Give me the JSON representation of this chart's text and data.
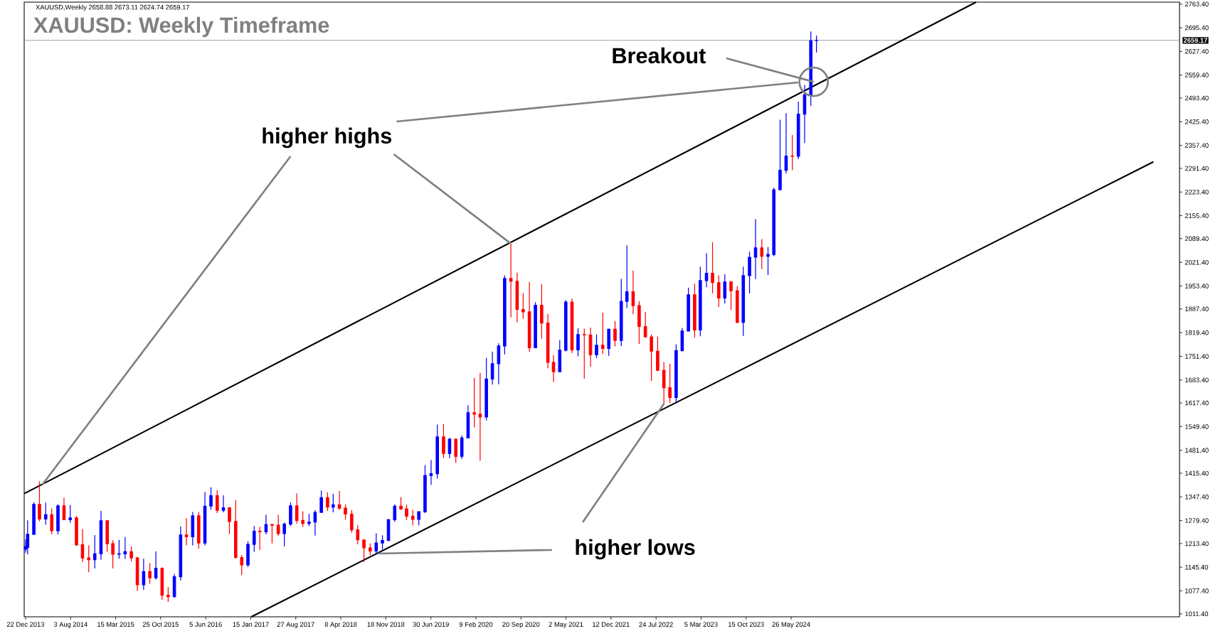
{
  "chart_data": {
    "type": "candlestick",
    "title": "XAUUSD: Weekly Timeframe",
    "annotations": [
      "XAUUSD,Weekly  2658.88 2673.11 2624.74 2659.17",
      {
        "text": "higher highs",
        "x": "2020-08-01",
        "y": 2075
      },
      {
        "text": "higher lows",
        "x": "2022-09-01",
        "y": 1615
      },
      {
        "text": "Breakout",
        "x": "2024-09-15",
        "y": 2540
      }
    ],
    "x": [
      "2013-12-22",
      "2014-01-01",
      "2014-02-01",
      "2014-03-01",
      "2014-04-01",
      "2014-05-01",
      "2014-06-01",
      "2014-07-01",
      "2014-08-01",
      "2014-09-01",
      "2014-10-01",
      "2014-11-01",
      "2014-12-01",
      "2015-01-01",
      "2015-02-01",
      "2015-03-01",
      "2015-04-01",
      "2015-05-01",
      "2015-06-01",
      "2015-07-01",
      "2015-08-01",
      "2015-09-01",
      "2015-10-01",
      "2015-11-01",
      "2015-12-01",
      "2016-01-01",
      "2016-02-01",
      "2016-03-01",
      "2016-04-01",
      "2016-05-01",
      "2016-06-01",
      "2016-07-01",
      "2016-08-01",
      "2016-09-01",
      "2016-10-01",
      "2016-11-01",
      "2016-12-01",
      "2017-01-01",
      "2017-02-01",
      "2017-03-01",
      "2017-04-01",
      "2017-05-01",
      "2017-06-01",
      "2017-07-01",
      "2017-08-01",
      "2017-09-01",
      "2017-10-01",
      "2017-11-01",
      "2017-12-01",
      "2018-01-01",
      "2018-02-01",
      "2018-03-01",
      "2018-04-01",
      "2018-05-01",
      "2018-06-01",
      "2018-07-01",
      "2018-08-01",
      "2018-09-01",
      "2018-10-01",
      "2018-11-01",
      "2018-12-01",
      "2019-01-01",
      "2019-02-01",
      "2019-03-01",
      "2019-04-01",
      "2019-05-01",
      "2019-06-01",
      "2019-07-01",
      "2019-08-01",
      "2019-09-01",
      "2019-10-01",
      "2019-11-01",
      "2019-12-01",
      "2020-01-01",
      "2020-02-01",
      "2020-03-01",
      "2020-04-01",
      "2020-05-01",
      "2020-06-01",
      "2020-07-01",
      "2020-08-01",
      "2020-09-01",
      "2020-10-01",
      "2020-11-01",
      "2020-12-01",
      "2021-01-01",
      "2021-02-01",
      "2021-03-01",
      "2021-04-01",
      "2021-05-01",
      "2021-06-01",
      "2021-07-01",
      "2021-08-01",
      "2021-09-01",
      "2021-10-01",
      "2021-11-01",
      "2021-12-01",
      "2022-01-01",
      "2022-02-01",
      "2022-03-01",
      "2022-04-01",
      "2022-05-01",
      "2022-06-01",
      "2022-07-01",
      "2022-08-01",
      "2022-09-01",
      "2022-10-01",
      "2022-11-01",
      "2022-12-01",
      "2023-01-01",
      "2023-02-01",
      "2023-03-01",
      "2023-04-01",
      "2023-05-01",
      "2023-06-01",
      "2023-07-01",
      "2023-08-01",
      "2023-09-01",
      "2023-10-01",
      "2023-11-01",
      "2023-12-01",
      "2024-01-01",
      "2024-02-01",
      "2024-03-01",
      "2024-04-01",
      "2024-05-01",
      "2024-06-01",
      "2024-07-01",
      "2024-08-01",
      "2024-09-01",
      "2024-09-29"
    ],
    "ohlc": [
      [
        1197,
        1225,
        1187,
        1205
      ],
      [
        1202,
        1280,
        1182,
        1240
      ],
      [
        1240,
        1332,
        1238,
        1326
      ],
      [
        1326,
        1392,
        1277,
        1284
      ],
      [
        1284,
        1331,
        1268,
        1296
      ],
      [
        1296,
        1315,
        1240,
        1250
      ],
      [
        1250,
        1326,
        1240,
        1322
      ],
      [
        1322,
        1345,
        1282,
        1282
      ],
      [
        1282,
        1324,
        1273,
        1287
      ],
      [
        1287,
        1293,
        1206,
        1210
      ],
      [
        1210,
        1255,
        1160,
        1172
      ],
      [
        1172,
        1208,
        1131,
        1167
      ],
      [
        1167,
        1238,
        1142,
        1184
      ],
      [
        1184,
        1307,
        1167,
        1279
      ],
      [
        1279,
        1281,
        1190,
        1213
      ],
      [
        1213,
        1223,
        1142,
        1183
      ],
      [
        1183,
        1224,
        1170,
        1184
      ],
      [
        1184,
        1232,
        1169,
        1190
      ],
      [
        1190,
        1205,
        1162,
        1172
      ],
      [
        1172,
        1175,
        1077,
        1095
      ],
      [
        1095,
        1170,
        1080,
        1133
      ],
      [
        1133,
        1157,
        1098,
        1115
      ],
      [
        1115,
        1191,
        1110,
        1142
      ],
      [
        1142,
        1145,
        1052,
        1065
      ],
      [
        1065,
        1088,
        1046,
        1061
      ],
      [
        1061,
        1126,
        1058,
        1118
      ],
      [
        1118,
        1263,
        1107,
        1238
      ],
      [
        1238,
        1287,
        1208,
        1233
      ],
      [
        1233,
        1304,
        1208,
        1293
      ],
      [
        1293,
        1304,
        1199,
        1215
      ],
      [
        1215,
        1362,
        1208,
        1321
      ],
      [
        1321,
        1375,
        1310,
        1351
      ],
      [
        1351,
        1367,
        1301,
        1309
      ],
      [
        1309,
        1352,
        1303,
        1316
      ],
      [
        1316,
        1318,
        1241,
        1277
      ],
      [
        1277,
        1338,
        1171,
        1173
      ],
      [
        1173,
        1180,
        1123,
        1152
      ],
      [
        1152,
        1220,
        1146,
        1211
      ],
      [
        1211,
        1264,
        1190,
        1249
      ],
      [
        1249,
        1262,
        1195,
        1247
      ],
      [
        1247,
        1296,
        1240,
        1268
      ],
      [
        1268,
        1270,
        1214,
        1266
      ],
      [
        1266,
        1296,
        1236,
        1242
      ],
      [
        1242,
        1274,
        1205,
        1269
      ],
      [
        1269,
        1331,
        1264,
        1322
      ],
      [
        1322,
        1357,
        1271,
        1280
      ],
      [
        1280,
        1306,
        1261,
        1271
      ],
      [
        1271,
        1299,
        1264,
        1275
      ],
      [
        1275,
        1309,
        1236,
        1303
      ],
      [
        1303,
        1366,
        1302,
        1345
      ],
      [
        1345,
        1361,
        1307,
        1318
      ],
      [
        1318,
        1356,
        1303,
        1325
      ],
      [
        1325,
        1365,
        1310,
        1315
      ],
      [
        1315,
        1326,
        1282,
        1298
      ],
      [
        1298,
        1309,
        1245,
        1253
      ],
      [
        1253,
        1266,
        1211,
        1224
      ],
      [
        1224,
        1224,
        1160,
        1201
      ],
      [
        1201,
        1214,
        1180,
        1192
      ],
      [
        1192,
        1243,
        1182,
        1215
      ],
      [
        1215,
        1237,
        1196,
        1222
      ],
      [
        1222,
        1284,
        1221,
        1282
      ],
      [
        1282,
        1326,
        1276,
        1321
      ],
      [
        1321,
        1347,
        1310,
        1313
      ],
      [
        1313,
        1325,
        1281,
        1292
      ],
      [
        1292,
        1310,
        1266,
        1283
      ],
      [
        1283,
        1306,
        1266,
        1305
      ],
      [
        1305,
        1439,
        1301,
        1409
      ],
      [
        1409,
        1453,
        1382,
        1414
      ],
      [
        1414,
        1555,
        1400,
        1520
      ],
      [
        1520,
        1557,
        1459,
        1472
      ],
      [
        1472,
        1517,
        1459,
        1513
      ],
      [
        1513,
        1516,
        1445,
        1464
      ],
      [
        1464,
        1524,
        1456,
        1517
      ],
      [
        1517,
        1611,
        1517,
        1589
      ],
      [
        1589,
        1689,
        1547,
        1585
      ],
      [
        1585,
        1704,
        1451,
        1577
      ],
      [
        1577,
        1747,
        1567,
        1686
      ],
      [
        1686,
        1765,
        1670,
        1730
      ],
      [
        1730,
        1789,
        1671,
        1781
      ],
      [
        1781,
        1984,
        1757,
        1975
      ],
      [
        1975,
        2075,
        1863,
        1967
      ],
      [
        1967,
        1992,
        1849,
        1886
      ],
      [
        1886,
        1933,
        1860,
        1879
      ],
      [
        1879,
        1965,
        1764,
        1776
      ],
      [
        1776,
        1907,
        1775,
        1898
      ],
      [
        1898,
        1959,
        1802,
        1847
      ],
      [
        1847,
        1873,
        1717,
        1734
      ],
      [
        1734,
        1755,
        1677,
        1707
      ],
      [
        1707,
        1798,
        1706,
        1769
      ],
      [
        1769,
        1913,
        1765,
        1907
      ],
      [
        1907,
        1917,
        1761,
        1770
      ],
      [
        1770,
        1832,
        1751,
        1814
      ],
      [
        1814,
        1831,
        1687,
        1813
      ],
      [
        1813,
        1834,
        1721,
        1756
      ],
      [
        1756,
        1814,
        1746,
        1783
      ],
      [
        1783,
        1877,
        1758,
        1774
      ],
      [
        1774,
        1831,
        1753,
        1829
      ],
      [
        1829,
        1853,
        1780,
        1797
      ],
      [
        1797,
        1974,
        1781,
        1909
      ],
      [
        1909,
        2070,
        1890,
        1937
      ],
      [
        1937,
        1998,
        1872,
        1897
      ],
      [
        1897,
        1910,
        1787,
        1837
      ],
      [
        1837,
        1879,
        1806,
        1807
      ],
      [
        1807,
        1814,
        1681,
        1766
      ],
      [
        1766,
        1808,
        1709,
        1711
      ],
      [
        1711,
        1735,
        1615,
        1661
      ],
      [
        1661,
        1730,
        1617,
        1633
      ],
      [
        1633,
        1786,
        1616,
        1768
      ],
      [
        1768,
        1833,
        1765,
        1824
      ],
      [
        1824,
        1949,
        1823,
        1928
      ],
      [
        1928,
        1960,
        1805,
        1827
      ],
      [
        1827,
        2009,
        1809,
        1969
      ],
      [
        1969,
        2048,
        1950,
        1990
      ],
      [
        1990,
        2079,
        1932,
        1963
      ],
      [
        1963,
        1984,
        1893,
        1919
      ],
      [
        1919,
        1987,
        1903,
        1965
      ],
      [
        1965,
        1968,
        1885,
        1940
      ],
      [
        1940,
        1953,
        1846,
        1849
      ],
      [
        1849,
        2009,
        1810,
        1983
      ],
      [
        1983,
        2052,
        1932,
        2036
      ],
      [
        2036,
        2146,
        1973,
        2063
      ],
      [
        2063,
        2088,
        2002,
        2039
      ],
      [
        2039,
        2065,
        1985,
        2044
      ],
      [
        2044,
        2236,
        2039,
        2230
      ],
      [
        2230,
        2431,
        2228,
        2286
      ],
      [
        2286,
        2450,
        2277,
        2327
      ],
      [
        2327,
        2387,
        2286,
        2326
      ],
      [
        2326,
        2483,
        2318,
        2447
      ],
      [
        2447,
        2531,
        2364,
        2503
      ],
      [
        2503,
        2685,
        2471,
        2658
      ],
      [
        2658.88,
        2673.11,
        2624.74,
        2659.17
      ]
    ],
    "colors": [
      "#0000ff",
      "#0000ff",
      "#0000ff",
      "#ff0000",
      "#0000ff",
      "#ff0000",
      "#0000ff",
      "#ff0000",
      "#0000ff",
      "#ff0000",
      "#ff0000",
      "#ff0000",
      "#0000ff",
      "#0000ff",
      "#ff0000",
      "#ff0000",
      "#0000ff",
      "#0000ff",
      "#ff0000",
      "#ff0000",
      "#0000ff",
      "#ff0000",
      "#0000ff",
      "#ff0000",
      "#ff0000",
      "#0000ff",
      "#0000ff",
      "#ff0000",
      "#0000ff",
      "#ff0000",
      "#0000ff",
      "#0000ff",
      "#ff0000",
      "#0000ff",
      "#ff0000",
      "#ff0000",
      "#ff0000",
      "#0000ff",
      "#0000ff",
      "#ff0000",
      "#0000ff",
      "#ff0000",
      "#ff0000",
      "#0000ff",
      "#0000ff",
      "#ff0000",
      "#ff0000",
      "#0000ff",
      "#0000ff",
      "#0000ff",
      "#ff0000",
      "#0000ff",
      "#ff0000",
      "#ff0000",
      "#ff0000",
      "#ff0000",
      "#ff0000",
      "#ff0000",
      "#0000ff",
      "#0000ff",
      "#0000ff",
      "#0000ff",
      "#ff0000",
      "#ff0000",
      "#ff0000",
      "#0000ff",
      "#0000ff",
      "#0000ff",
      "#0000ff",
      "#ff0000",
      "#0000ff",
      "#ff0000",
      "#0000ff",
      "#0000ff",
      "#ff0000",
      "#ff0000",
      "#0000ff",
      "#0000ff",
      "#0000ff",
      "#0000ff",
      "#ff0000",
      "#ff0000",
      "#ff0000",
      "#ff0000",
      "#0000ff",
      "#ff0000",
      "#ff0000",
      "#ff0000",
      "#0000ff",
      "#0000ff",
      "#ff0000",
      "#0000ff",
      "#ff0000",
      "#ff0000",
      "#0000ff",
      "#ff0000",
      "#0000ff",
      "#ff0000",
      "#0000ff",
      "#0000ff",
      "#ff0000",
      "#ff0000",
      "#ff0000",
      "#ff0000",
      "#ff0000",
      "#ff0000",
      "#ff0000",
      "#0000ff",
      "#0000ff",
      "#0000ff",
      "#ff0000",
      "#0000ff",
      "#0000ff",
      "#ff0000",
      "#ff0000",
      "#0000ff",
      "#ff0000",
      "#ff0000",
      "#0000ff",
      "#0000ff",
      "#0000ff",
      "#ff0000",
      "#0000ff",
      "#0000ff",
      "#0000ff",
      "#0000ff",
      "#ff0000",
      "#0000ff",
      "#0000ff",
      "#0000ff",
      "#0000ff"
    ],
    "series": [
      {
        "type": "line",
        "color": "#000000",
        "x": [
          "2013-12-15",
          "2026-12-02"
        ],
        "values": [
          1357,
          2769
        ]
      },
      {
        "type": "line",
        "color": "#000000",
        "x": [
          "2017-01-18",
          "2029-05-02"
        ],
        "values": [
          1003,
          2310
        ]
      }
    ],
    "ref_lines": [
      {
        "axis": "y",
        "value": 2659.17,
        "label": "2659.17",
        "color": "#8c9bab"
      }
    ],
    "xlim": [
      "2013-12-15",
      "2029-09-09"
    ],
    "ylim": [
      1003,
      2769
    ],
    "xticks": [
      {
        "value": "2013-12-22",
        "label": "22 Dec 2013"
      },
      {
        "value": "2014-08-03",
        "label": "3 Aug 2014"
      },
      {
        "value": "2015-03-15",
        "label": "15 Mar 2015"
      },
      {
        "value": "2015-10-25",
        "label": "25 Oct 2015"
      },
      {
        "value": "2016-06-05",
        "label": "5 Jun 2016"
      },
      {
        "value": "2017-01-15",
        "label": "15 Jan 2017"
      },
      {
        "value": "2017-08-27",
        "label": "27 Aug 2017"
      },
      {
        "value": "2018-04-08",
        "label": "8 Apr 2018"
      },
      {
        "value": "2018-11-18",
        "label": "18 Nov 2018"
      },
      {
        "value": "2019-06-30",
        "label": "30 Jun 2019"
      },
      {
        "value": "2020-02-09",
        "label": "9 Feb 2020"
      },
      {
        "value": "2020-09-20",
        "label": "20 Sep 2020"
      },
      {
        "value": "2021-05-02",
        "label": "2 May 2021"
      },
      {
        "value": "2021-12-12",
        "label": "12 Dec 2021"
      },
      {
        "value": "2022-07-24",
        "label": "24 Jul 2022"
      },
      {
        "value": "2023-03-05",
        "label": "5 Mar 2023"
      },
      {
        "value": "2023-10-15",
        "label": "15 Oct 2023"
      },
      {
        "value": "2024-05-26",
        "label": "26 May 2024"
      }
    ],
    "yticks": [
      {
        "value": 1011.4,
        "label": "1011.40"
      },
      {
        "value": 1077.4,
        "label": "1077.40"
      },
      {
        "value": 1145.4,
        "label": "1145.40"
      },
      {
        "value": 1213.4,
        "label": "1213.40"
      },
      {
        "value": 1279.4,
        "label": "1279.40"
      },
      {
        "value": 1347.4,
        "label": "1347.40"
      },
      {
        "value": 1415.4,
        "label": "1415.40"
      },
      {
        "value": 1481.4,
        "label": "1481.40"
      },
      {
        "value": 1549.4,
        "label": "1549.40"
      },
      {
        "value": 1617.4,
        "label": "1617.40"
      },
      {
        "value": 1683.4,
        "label": "1683.40"
      },
      {
        "value": 1751.4,
        "label": "1751.40"
      },
      {
        "value": 1819.4,
        "label": "1819.40"
      },
      {
        "value": 1887.4,
        "label": "1887.40"
      },
      {
        "value": 1953.4,
        "label": "1953.40"
      },
      {
        "value": 2021.4,
        "label": "2021.40"
      },
      {
        "value": 2089.4,
        "label": "2089.40"
      },
      {
        "value": 2155.4,
        "label": "2155.40"
      },
      {
        "value": 2223.4,
        "label": "2223.40"
      },
      {
        "value": 2291.4,
        "label": "2291.40"
      },
      {
        "value": 2357.4,
        "label": "2357.40"
      },
      {
        "value": 2425.4,
        "label": "2425.40"
      },
      {
        "value": 2493.4,
        "label": "2493.40"
      },
      {
        "value": 2559.4,
        "label": "2559.40"
      },
      {
        "value": 2627.4,
        "label": "2627.40"
      },
      {
        "value": 2695.4,
        "label": "2695.40"
      },
      {
        "value": 2763.4,
        "label": "2763.40"
      }
    ]
  }
}
